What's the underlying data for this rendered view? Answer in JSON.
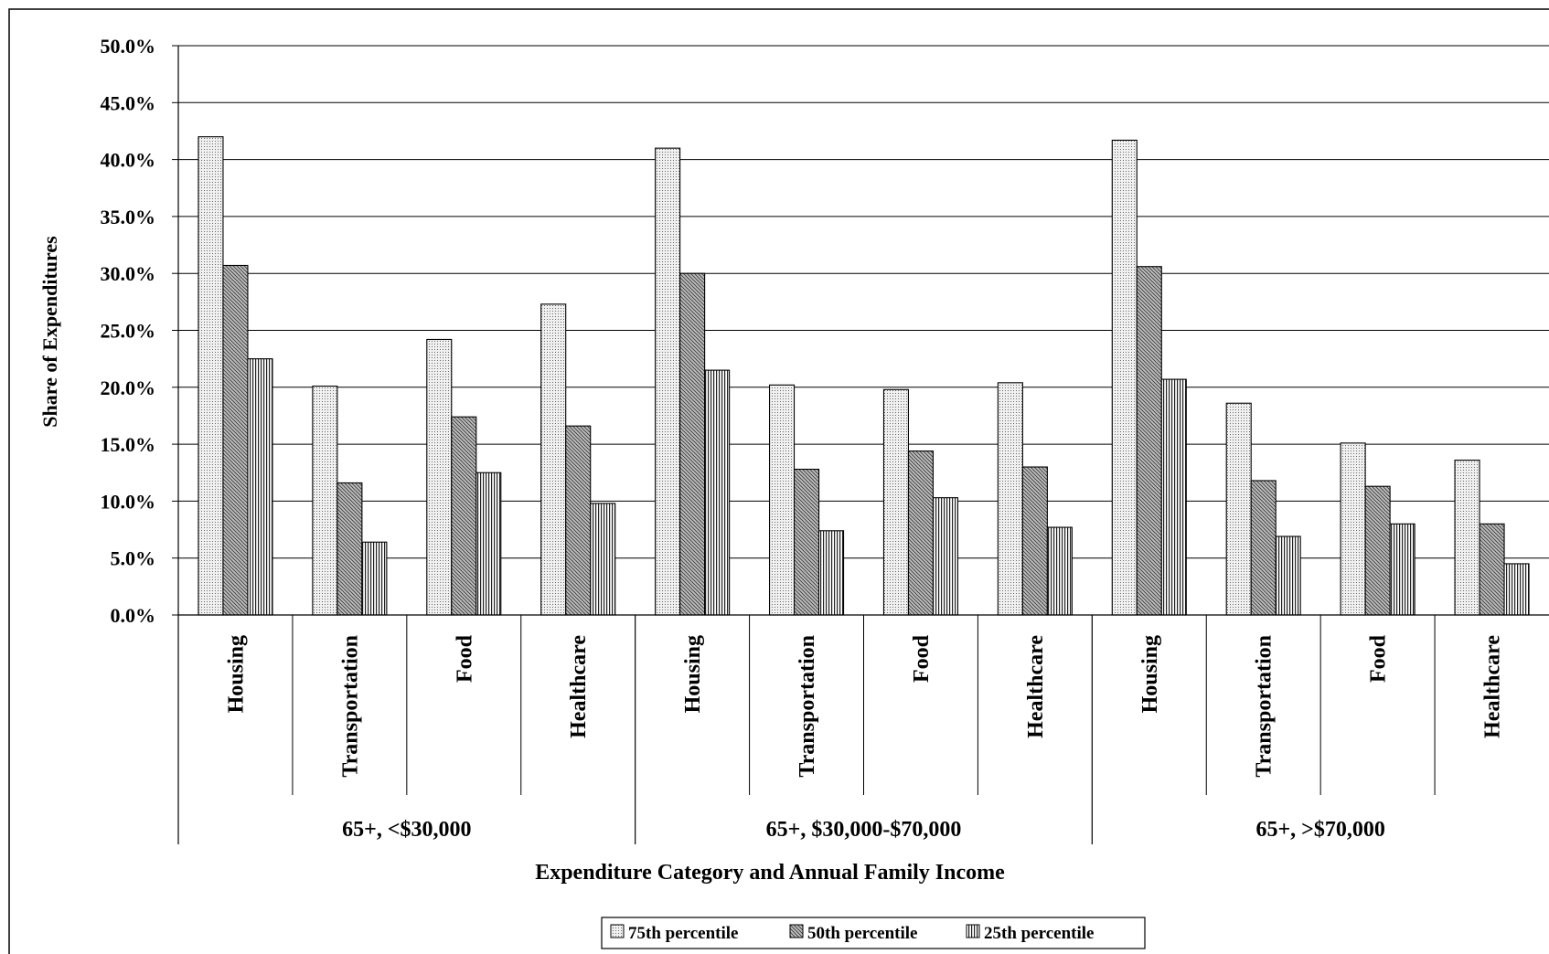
{
  "chart_data": {
    "type": "bar",
    "xlabel": "Expenditure Category and Annual Family Income",
    "ylabel": "Share of Expenditures",
    "ylim": [
      0,
      50
    ],
    "y_ticks": [
      "0.0%",
      "5.0%",
      "10.0%",
      "15.0%",
      "20.0%",
      "25.0%",
      "30.0%",
      "35.0%",
      "40.0%",
      "45.0%",
      "50.0%"
    ],
    "grid": true,
    "legend_position": "bottom",
    "groups": [
      {
        "label": "65+, <$30,000",
        "categories": [
          "Housing",
          "Transportation",
          "Food",
          "Healthcare"
        ]
      },
      {
        "label": "65+, $30,000-$70,000",
        "categories": [
          "Housing",
          "Transportation",
          "Food",
          "Healthcare"
        ]
      },
      {
        "label": "65+, >$70,000",
        "categories": [
          "Housing",
          "Transportation",
          "Food",
          "Healthcare"
        ]
      }
    ],
    "series": [
      {
        "name": "75th percentile",
        "pattern": "dots",
        "values": [
          42.0,
          20.1,
          24.2,
          27.3,
          41.0,
          20.2,
          19.8,
          20.4,
          41.7,
          18.6,
          15.1,
          13.6
        ]
      },
      {
        "name": "50th percentile",
        "pattern": "diagonal",
        "values": [
          30.7,
          11.6,
          17.4,
          16.6,
          30.0,
          12.8,
          14.4,
          13.0,
          30.6,
          11.8,
          11.3,
          8.0
        ]
      },
      {
        "name": "25th percentile",
        "pattern": "vertical",
        "values": [
          22.5,
          6.4,
          12.5,
          9.8,
          21.5,
          7.4,
          10.3,
          7.7,
          20.7,
          6.9,
          8.0,
          4.5
        ]
      }
    ]
  }
}
